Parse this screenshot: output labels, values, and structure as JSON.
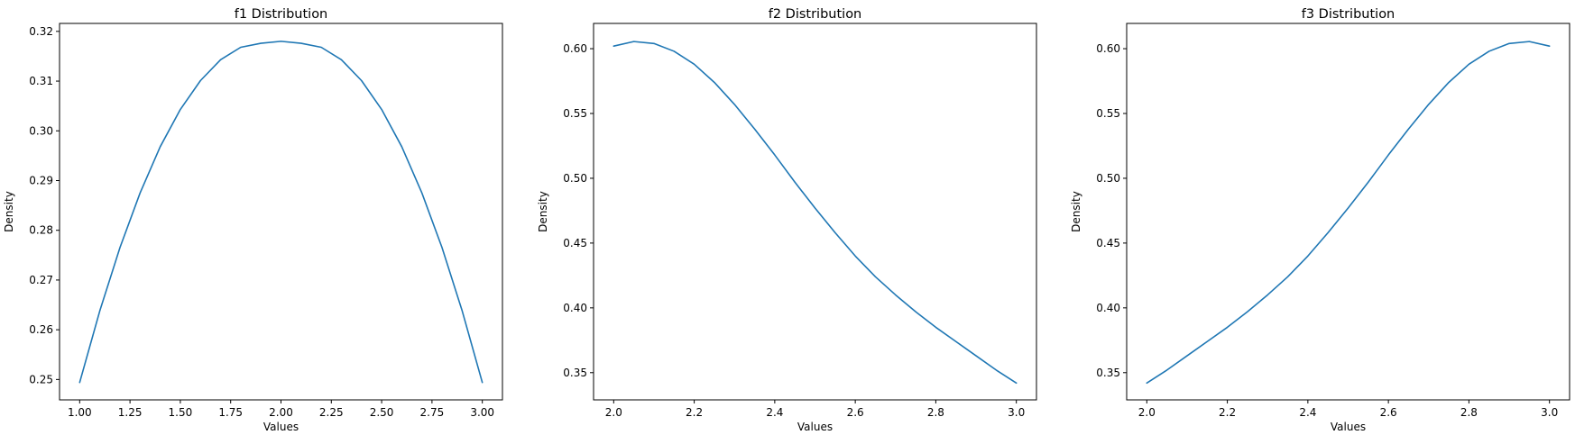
{
  "chart_data": [
    {
      "type": "line",
      "title": "f1 Distribution",
      "xlabel": "Values",
      "ylabel": "Density",
      "xlim": [
        0.9,
        3.1
      ],
      "ylim": [
        0.2459,
        0.3216
      ],
      "xticks": [
        1.0,
        1.25,
        1.5,
        1.75,
        2.0,
        2.25,
        2.5,
        2.75,
        3.0
      ],
      "xtick_labels": [
        "1.00",
        "1.25",
        "1.50",
        "1.75",
        "2.00",
        "2.25",
        "2.50",
        "2.75",
        "3.00"
      ],
      "yticks": [
        0.25,
        0.26,
        0.27,
        0.28,
        0.29,
        0.3,
        0.31,
        0.32
      ],
      "ytick_labels": [
        "0.25",
        "0.26",
        "0.27",
        "0.28",
        "0.29",
        "0.30",
        "0.31",
        "0.32"
      ],
      "grid": false,
      "color": "#1f77b4",
      "series": [
        {
          "x": [
            1.0,
            1.1,
            1.2,
            1.3,
            1.4,
            1.5,
            1.6,
            1.7,
            1.8,
            1.9,
            2.0,
            2.1,
            2.2,
            2.3,
            2.4,
            2.5,
            2.6,
            2.7,
            2.8,
            2.9,
            3.0
          ],
          "y": [
            0.2494,
            0.2638,
            0.2765,
            0.2875,
            0.2968,
            0.3043,
            0.3101,
            0.3143,
            0.3168,
            0.3176,
            0.318,
            0.3176,
            0.3168,
            0.3143,
            0.3101,
            0.3043,
            0.2968,
            0.2875,
            0.2765,
            0.2638,
            0.2494
          ]
        }
      ]
    },
    {
      "type": "line",
      "title": "f2 Distribution",
      "xlabel": "Values",
      "ylabel": "Density",
      "xlim": [
        1.95,
        3.05
      ],
      "ylim": [
        0.329,
        0.6195
      ],
      "xticks": [
        2.0,
        2.2,
        2.4,
        2.6,
        2.8,
        3.0
      ],
      "xtick_labels": [
        "2.0",
        "2.2",
        "2.4",
        "2.6",
        "2.8",
        "3.0"
      ],
      "yticks": [
        0.35,
        0.4,
        0.45,
        0.5,
        0.55,
        0.6
      ],
      "ytick_labels": [
        "0.35",
        "0.40",
        "0.45",
        "0.50",
        "0.55",
        "0.60"
      ],
      "grid": false,
      "color": "#1f77b4",
      "series": [
        {
          "x": [
            2.0,
            2.05,
            2.1,
            2.15,
            2.2,
            2.25,
            2.3,
            2.35,
            2.4,
            2.45,
            2.5,
            2.55,
            2.6,
            2.65,
            2.7,
            2.75,
            2.8,
            2.85,
            2.9,
            2.95,
            3.0
          ],
          "y": [
            0.602,
            0.6055,
            0.604,
            0.598,
            0.588,
            0.574,
            0.557,
            0.538,
            0.518,
            0.497,
            0.477,
            0.458,
            0.44,
            0.424,
            0.41,
            0.397,
            0.385,
            0.374,
            0.363,
            0.352,
            0.342
          ]
        }
      ]
    },
    {
      "type": "line",
      "title": "f3 Distribution",
      "xlabel": "Values",
      "ylabel": "Density",
      "xlim": [
        1.95,
        3.05
      ],
      "ylim": [
        0.329,
        0.6195
      ],
      "xticks": [
        2.0,
        2.2,
        2.4,
        2.6,
        2.8,
        3.0
      ],
      "xtick_labels": [
        "2.0",
        "2.2",
        "2.4",
        "2.6",
        "2.8",
        "3.0"
      ],
      "yticks": [
        0.35,
        0.4,
        0.45,
        0.5,
        0.55,
        0.6
      ],
      "ytick_labels": [
        "0.35",
        "0.40",
        "0.45",
        "0.50",
        "0.55",
        "0.60"
      ],
      "grid": false,
      "color": "#1f77b4",
      "series": [
        {
          "x": [
            2.0,
            2.05,
            2.1,
            2.15,
            2.2,
            2.25,
            2.3,
            2.35,
            2.4,
            2.45,
            2.5,
            2.55,
            2.6,
            2.65,
            2.7,
            2.75,
            2.8,
            2.85,
            2.9,
            2.95,
            3.0
          ],
          "y": [
            0.342,
            0.352,
            0.363,
            0.374,
            0.385,
            0.397,
            0.41,
            0.424,
            0.44,
            0.458,
            0.477,
            0.497,
            0.518,
            0.538,
            0.557,
            0.574,
            0.588,
            0.598,
            0.604,
            0.6055,
            0.602
          ]
        }
      ]
    }
  ]
}
